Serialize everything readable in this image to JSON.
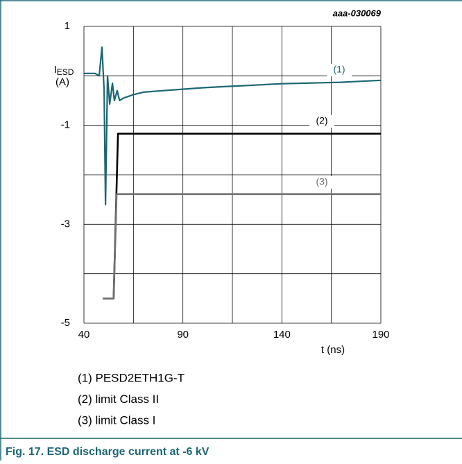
{
  "chart_data": {
    "type": "line",
    "code": "aaa-030069",
    "ylabel": "I",
    "ylabel_sub": "ESD",
    "ylabel_unit": "(A)",
    "xlabel": "t (ns)",
    "xlim": [
      40,
      190
    ],
    "ylim": [
      -5,
      1
    ],
    "xticks": [
      40,
      90,
      140,
      190
    ],
    "yticks": [
      1,
      -1,
      -3,
      -5
    ],
    "xgrid": [
      40,
      65,
      90,
      115,
      140,
      165,
      190
    ],
    "ygrid": [
      1,
      0,
      -1,
      -2,
      -3,
      -4,
      -5
    ],
    "grid": true,
    "series": [
      {
        "name": "(1) PESD2ETH1G-T",
        "label": "(1)",
        "color": "#1b6674",
        "x": [
          40,
          45.6,
          47.7,
          49.1,
          50.2,
          50.9,
          51.9,
          53,
          54.4,
          55.4,
          56.8,
          58,
          60,
          65,
          70,
          80,
          90,
          100,
          110,
          120,
          130,
          140,
          150,
          160,
          170,
          180,
          190
        ],
        "values": [
          0.05,
          0.05,
          0,
          0.58,
          -0.3,
          -2.6,
          0,
          -0.57,
          -0.15,
          -0.5,
          -0.3,
          -0.5,
          -0.45,
          -0.38,
          -0.33,
          -0.3,
          -0.27,
          -0.24,
          -0.22,
          -0.2,
          -0.18,
          -0.16,
          -0.15,
          -0.14,
          -0.13,
          -0.11,
          -0.09
        ]
      },
      {
        "name": "(2) limit Class II",
        "label": "(2)",
        "color": "#000000",
        "x": [
          49.5,
          55,
          57.2,
          190
        ],
        "values": [
          -4.5,
          -4.5,
          -1.17,
          -1.17
        ]
      },
      {
        "name": "(3) limit Class I",
        "label": "(3)",
        "color": "#707070",
        "x": [
          49.5,
          55,
          56.5,
          190
        ],
        "values": [
          -4.5,
          -4.5,
          -2.39,
          -2.39
        ]
      }
    ],
    "caption": "Fig. 17.  ESD discharge current at -6 kV"
  }
}
